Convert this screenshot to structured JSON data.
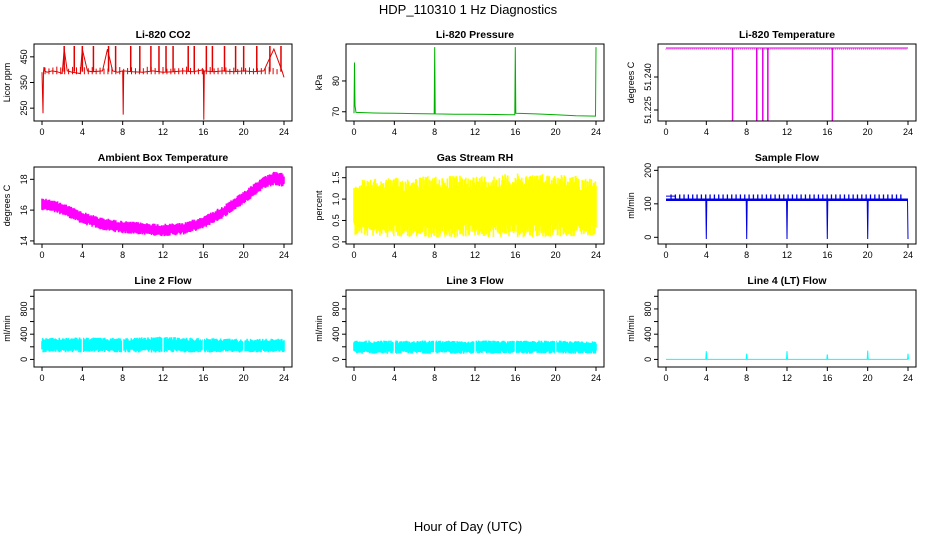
{
  "figure": {
    "title": "HDP_110310  1 Hz Diagnostics",
    "xlabel": "Hour of Day (UTC)"
  },
  "chart_data": [
    {
      "type": "line",
      "title": "Li-820 CO2",
      "ylabel": "Licor ppm",
      "color": "#e00000",
      "xlim": [
        0,
        24
      ],
      "ylim": [
        200,
        500
      ],
      "x_ticks": [
        0,
        4,
        8,
        12,
        16,
        20,
        24
      ],
      "y_ticks": [
        250,
        350,
        450
      ],
      "y_tick_labels": [
        "250",
        "350",
        "450"
      ],
      "series": [
        {
          "x": [
            0,
            0.1,
            0.15,
            0.2,
            0.25,
            0.5,
            1,
            1.5,
            2,
            2.2,
            2.5,
            3,
            3.8,
            4,
            4.5,
            5,
            6,
            6.5,
            7,
            7.5,
            8,
            8.05,
            8.1,
            9,
            10,
            11,
            12,
            13,
            14,
            15,
            16,
            16.05,
            16.1,
            17,
            18,
            19,
            20,
            21,
            22,
            23,
            23.8,
            24
          ],
          "y": [
            390,
            230,
            390,
            410,
            395,
            390,
            395,
            392,
            385,
            480,
            395,
            390,
            385,
            480,
            395,
            392,
            395,
            480,
            395,
            390,
            395,
            225,
            395,
            392,
            390,
            395,
            390,
            392,
            395,
            392,
            400,
            205,
            395,
            392,
            395,
            392,
            395,
            392,
            395,
            480,
            395,
            370
          ]
        }
      ],
      "spikes_to_top": [
        2.2,
        3.2,
        4.0,
        5.1,
        6.6,
        7.3,
        8.8,
        9.7,
        10.8,
        11.6,
        12.3,
        13.0,
        14.5,
        15.1,
        16.3,
        16.9,
        18.1,
        19.2,
        20.0,
        21.3,
        22.6,
        23.7
      ]
    },
    {
      "type": "line",
      "title": "Li-820 Pressure",
      "ylabel": "kPa",
      "color": "#00b000",
      "xlim": [
        0,
        24
      ],
      "ylim": [
        67,
        92
      ],
      "x_ticks": [
        0,
        4,
        8,
        12,
        16,
        20,
        24
      ],
      "y_ticks": [
        70,
        80
      ],
      "y_tick_labels": [
        "70",
        "80"
      ],
      "series": [
        {
          "x": [
            0,
            0.05,
            0.1,
            0.2,
            2,
            4,
            6,
            7.95,
            8,
            8.05,
            10,
            12,
            14,
            15.95,
            16,
            16.05,
            18,
            20,
            22,
            23.95,
            24
          ],
          "y": [
            69.5,
            86,
            72,
            69.8,
            69.6,
            69.5,
            69.4,
            69.3,
            91,
            69.3,
            69.2,
            69.2,
            69.1,
            69.0,
            91,
            69.5,
            69.3,
            69.0,
            68.7,
            68.6,
            91
          ]
        }
      ]
    },
    {
      "type": "line",
      "title": "Li-820 Temperature",
      "ylabel": "degrees C",
      "color": "#e000e0",
      "xlim": [
        0,
        24
      ],
      "ylim": [
        51.22,
        51.255
      ],
      "x_ticks": [
        0,
        4,
        8,
        12,
        16,
        20,
        24
      ],
      "y_ticks": [
        51.225,
        51.24
      ],
      "y_tick_labels": [
        "51.225",
        "51.240"
      ],
      "series": [
        {
          "x": [
            0,
            4,
            8,
            12,
            16,
            20,
            24
          ],
          "y": [
            51.2532,
            51.2532,
            51.2532,
            51.2532,
            51.2532,
            51.2532,
            51.2532
          ]
        }
      ],
      "drops_to_bottom": [
        6.6,
        9.0,
        9.6,
        10.1,
        16.5
      ]
    },
    {
      "type": "area",
      "title": "Ambient Box Temperature",
      "ylabel": "degrees C",
      "color": "#ff00ff",
      "xlim": [
        0,
        24
      ],
      "ylim": [
        13.8,
        18.8
      ],
      "x_ticks": [
        0,
        4,
        8,
        12,
        16,
        20,
        24
      ],
      "y_ticks": [
        14,
        16,
        18
      ],
      "y_tick_labels": [
        "14",
        "16",
        "18"
      ],
      "series": [
        {
          "name": "high",
          "x": [
            0,
            2,
            4,
            6,
            8,
            10,
            12,
            14,
            16,
            18,
            20,
            22,
            23,
            24
          ],
          "y": [
            16.8,
            16.5,
            15.9,
            15.5,
            15.3,
            15.2,
            15.1,
            15.2,
            15.6,
            16.3,
            17.2,
            18.2,
            18.5,
            18.4
          ]
        },
        {
          "name": "low",
          "x": [
            0,
            2,
            4,
            6,
            8,
            10,
            12,
            14,
            16,
            18,
            20,
            22,
            23,
            24
          ],
          "y": [
            16.0,
            15.7,
            15.1,
            14.7,
            14.5,
            14.4,
            14.3,
            14.4,
            14.8,
            15.5,
            16.4,
            17.4,
            17.6,
            17.5
          ]
        }
      ]
    },
    {
      "type": "area",
      "title": "Gas Stream RH",
      "ylabel": "percent",
      "color": "#ffff00",
      "xlim": [
        0,
        24
      ],
      "ylim": [
        -0.05,
        1.75
      ],
      "x_ticks": [
        0,
        4,
        8,
        12,
        16,
        20,
        24
      ],
      "y_ticks": [
        0.0,
        0.5,
        1.0,
        1.5
      ],
      "y_tick_labels": [
        "0.0",
        "0.5",
        "1.0",
        "1.5"
      ],
      "series": [
        {
          "name": "high",
          "x": [
            0,
            4,
            8,
            12,
            16,
            20,
            24
          ],
          "y": [
            1.45,
            1.5,
            1.55,
            1.55,
            1.6,
            1.6,
            1.5
          ]
        },
        {
          "name": "low",
          "x": [
            0,
            4,
            8,
            12,
            16,
            20,
            24
          ],
          "y": [
            0.15,
            0.1,
            0.1,
            0.12,
            0.1,
            0.12,
            0.15
          ]
        }
      ]
    },
    {
      "type": "line",
      "title": "Sample Flow",
      "ylabel": "ml/min",
      "color": "#0000e0",
      "xlim": [
        0,
        24
      ],
      "ylim": [
        -20,
        210
      ],
      "x_ticks": [
        0,
        4,
        8,
        12,
        16,
        20,
        24
      ],
      "y_ticks": [
        0,
        100,
        200
      ],
      "y_tick_labels": [
        "0",
        "100",
        "200"
      ],
      "series": [
        {
          "x": [
            0,
            0.9,
            1.0,
            3.95,
            4.0,
            4.05,
            7.95,
            8.0,
            8.05,
            11.95,
            12.0,
            12.05,
            15.95,
            16.0,
            16.05,
            19.95,
            20.0,
            20.05,
            23.95,
            24.0
          ],
          "y": [
            123,
            123,
            110,
            112,
            -5,
            112,
            112,
            -5,
            112,
            112,
            -5,
            112,
            112,
            -5,
            112,
            112,
            -5,
            112,
            112,
            -5
          ]
        }
      ]
    },
    {
      "type": "area",
      "title": "Line 2 Flow",
      "ylabel": "ml/min",
      "color": "#00ffff",
      "xlim": [
        0,
        24
      ],
      "ylim": [
        -120,
        1100
      ],
      "x_ticks": [
        0,
        4,
        8,
        12,
        16,
        20,
        24
      ],
      "y_ticks": [
        0,
        200,
        400,
        600,
        800,
        1000
      ],
      "y_tick_labels": [
        "0",
        "",
        "400",
        "",
        "800",
        ""
      ],
      "series": [
        {
          "name": "high",
          "x": [
            0,
            4,
            8,
            12,
            16,
            20,
            24
          ],
          "y": [
            340,
            350,
            340,
            360,
            340,
            330,
            330
          ]
        },
        {
          "name": "low",
          "x": [
            0,
            4,
            8,
            12,
            16,
            20,
            24
          ],
          "y": [
            110,
            110,
            110,
            110,
            110,
            110,
            110
          ]
        }
      ]
    },
    {
      "type": "area",
      "title": "Line 3 Flow",
      "ylabel": "ml/min",
      "color": "#00ffff",
      "xlim": [
        0,
        24
      ],
      "ylim": [
        -120,
        1100
      ],
      "x_ticks": [
        0,
        4,
        8,
        12,
        16,
        20,
        24
      ],
      "y_ticks": [
        0,
        200,
        400,
        600,
        800,
        1000
      ],
      "y_tick_labels": [
        "0",
        "",
        "400",
        "",
        "800",
        ""
      ],
      "series": [
        {
          "name": "high",
          "x": [
            0,
            4,
            8,
            12,
            16,
            20,
            24
          ],
          "y": [
            300,
            300,
            300,
            300,
            300,
            300,
            290
          ]
        },
        {
          "name": "low",
          "x": [
            0,
            4,
            8,
            12,
            16,
            20,
            24
          ],
          "y": [
            90,
            90,
            90,
            90,
            90,
            90,
            90
          ]
        }
      ]
    },
    {
      "type": "line",
      "title": "Line 4 (LT) Flow",
      "ylabel": "ml/min",
      "color": "#00ffff",
      "xlim": [
        0,
        24
      ],
      "ylim": [
        -120,
        1100
      ],
      "x_ticks": [
        0,
        4,
        8,
        12,
        16,
        20,
        24
      ],
      "y_ticks": [
        0,
        200,
        400,
        600,
        800,
        1000
      ],
      "y_tick_labels": [
        "0",
        "",
        "400",
        "",
        "800",
        ""
      ],
      "series": [
        {
          "x": [
            0,
            3.95,
            4.0,
            4.05,
            7.95,
            8.0,
            8.05,
            11.95,
            12.0,
            12.05,
            15.95,
            16.0,
            16.05,
            19.95,
            20.0,
            20.05,
            23.95,
            24.0,
            24.05
          ],
          "y": [
            0,
            0,
            130,
            0,
            0,
            90,
            0,
            0,
            130,
            0,
            0,
            80,
            0,
            0,
            140,
            0,
            0,
            90,
            0
          ]
        }
      ]
    }
  ]
}
